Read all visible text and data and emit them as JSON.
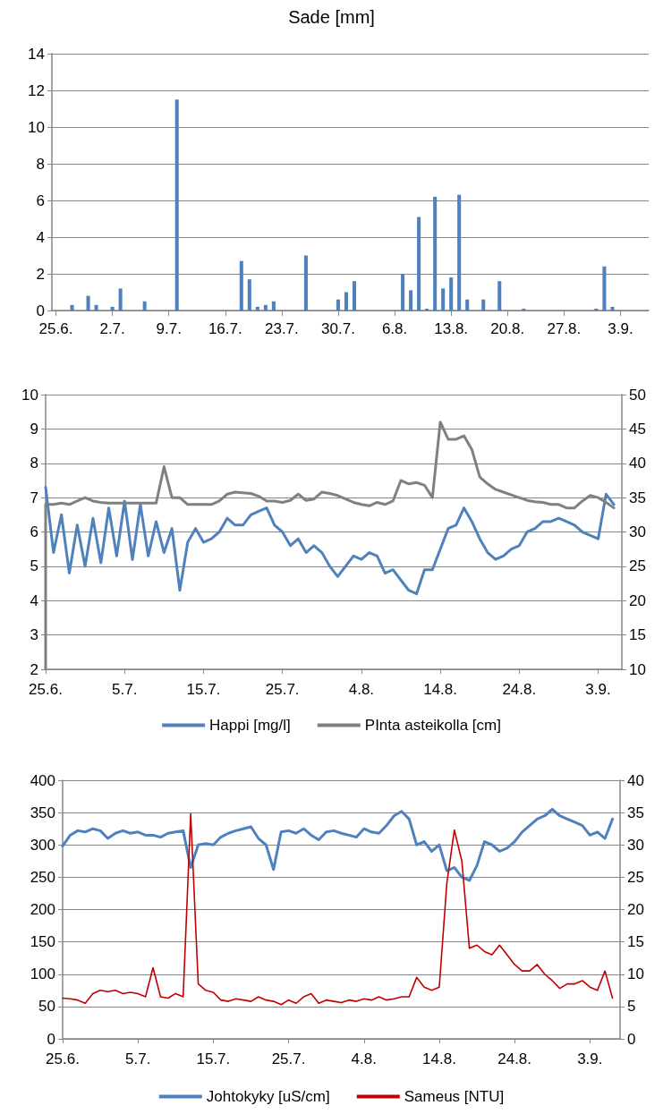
{
  "chart_data": [
    {
      "type": "bar",
      "title": "Sade [mm]",
      "categories": [
        "25.6.",
        null,
        null,
        null,
        null,
        null,
        null,
        "2.7.",
        null,
        null,
        null,
        null,
        null,
        null,
        "9.7.",
        null,
        null,
        null,
        null,
        null,
        null,
        "16.7.",
        null,
        null,
        null,
        null,
        null,
        null,
        "23.7.",
        null,
        null,
        null,
        null,
        null,
        null,
        "30.7.",
        null,
        null,
        null,
        null,
        null,
        null,
        "6.8.",
        null,
        null,
        null,
        null,
        null,
        null,
        "13.8.",
        null,
        null,
        null,
        null,
        null,
        null,
        "20.8.",
        null,
        null,
        null,
        null,
        null,
        null,
        "27.8.",
        null,
        null,
        null,
        null,
        null,
        null,
        "3.9.",
        null,
        null,
        null
      ],
      "values": [
        null,
        null,
        0.3,
        null,
        0.8,
        0.3,
        null,
        0.2,
        1.2,
        null,
        null,
        0.5,
        null,
        null,
        null,
        11.5,
        null,
        null,
        null,
        null,
        null,
        null,
        null,
        2.7,
        1.7,
        0.2,
        0.3,
        0.5,
        null,
        null,
        null,
        3.0,
        null,
        null,
        null,
        0.6,
        1.0,
        1.6,
        null,
        null,
        null,
        null,
        null,
        2.0,
        1.1,
        5.1,
        0.1,
        6.2,
        1.2,
        1.8,
        6.3,
        0.6,
        null,
        0.6,
        null,
        1.6,
        null,
        null,
        0.1,
        null,
        null,
        null,
        null,
        null,
        null,
        null,
        null,
        0.1,
        2.4,
        0.2,
        null,
        null,
        null,
        null
      ],
      "color": "#4f81bd",
      "ylim": [
        0,
        14
      ],
      "yticks": [
        0,
        2,
        4,
        6,
        8,
        10,
        12,
        14
      ],
      "grid": "y"
    },
    {
      "type": "line",
      "x": [
        "--06-25",
        "--06-26",
        "--06-27",
        "--06-28",
        "--06-29",
        "--06-30",
        "--07-01",
        "--07-02",
        "--07-03",
        "--07-04",
        "--07-05",
        "--07-06",
        "--07-07",
        "--07-08",
        "--07-09",
        "--07-10",
        "--07-11",
        "--07-12",
        "--07-13",
        "--07-14",
        "--07-15",
        "--07-16",
        "--07-17",
        "--07-18",
        "--07-19",
        "--07-20",
        "--07-21",
        "--07-22",
        "--07-23",
        "--07-24",
        "--07-25",
        "--07-26",
        "--07-27",
        "--07-28",
        "--07-29",
        "--07-30",
        "--07-31",
        "--08-01",
        "--08-02",
        "--08-03",
        "--08-04",
        "--08-05",
        "--08-06",
        "--08-07",
        "--08-08",
        "--08-09",
        "--08-10",
        "--08-11",
        "--08-12",
        "--08-13",
        "--08-14",
        "--08-15",
        "--08-16",
        "--08-17",
        "--08-18",
        "--08-19",
        "--08-20",
        "--08-21",
        "--08-22",
        "--08-23",
        "--08-24",
        "--08-25",
        "--08-26",
        "--08-27",
        "--08-28",
        "--08-29",
        "--08-30",
        "--08-31",
        "--09-01",
        "--09-02",
        "--09-03",
        "--09-04",
        "--09-05"
      ],
      "series": [
        {
          "name": "Happi [mg/l]",
          "color": "#4f81bd",
          "values": [
            7.3,
            5.4,
            6.5,
            4.8,
            6.2,
            5.0,
            6.4,
            5.1,
            6.7,
            5.3,
            6.9,
            5.2,
            6.8,
            5.3,
            6.3,
            5.4,
            6.1,
            4.3,
            5.7,
            6.1,
            5.7,
            5.8,
            6.0,
            6.4,
            6.2,
            6.2,
            6.5,
            6.6,
            6.7,
            6.2,
            6.0,
            5.6,
            5.8,
            5.4,
            5.6,
            5.4,
            5.0,
            4.7,
            5.0,
            5.3,
            5.2,
            5.4,
            5.3,
            4.8,
            4.9,
            4.6,
            4.3,
            4.2,
            4.9,
            4.9,
            5.5,
            6.1,
            6.2,
            6.7,
            6.3,
            5.8,
            5.4,
            5.2,
            5.3,
            5.5,
            5.6,
            6.0,
            6.1,
            6.3,
            6.3,
            6.4,
            6.3,
            6.2,
            6.0,
            5.9,
            5.8,
            7.1,
            6.8
          ]
        },
        {
          "name": "PInta asteikolla [cm]",
          "color": "#808080",
          "axis": "y2",
          "x": [
            "--06-25",
            "--06-25",
            "--06-26",
            "--06-27",
            "--06-28",
            "--06-29",
            "--06-30",
            "--07-01",
            "--07-02",
            "--07-03",
            "--07-04",
            "--07-05",
            "--07-06",
            "--07-07",
            "--07-08",
            "--07-09",
            "--07-10",
            "--07-11",
            "--07-12",
            "--07-13",
            "--07-14",
            "--07-15",
            "--07-16",
            "--07-17",
            "--07-18",
            "--07-19",
            "--07-20",
            "--07-21",
            "--07-22",
            "--07-23",
            "--07-24",
            "--07-25",
            "--07-26",
            "--07-27",
            "--07-28",
            "--07-29",
            "--07-30",
            "--07-31",
            "--08-01",
            "--08-02",
            "--08-03",
            "--08-04",
            "--08-05",
            "--08-06",
            "--08-07",
            "--08-08",
            "--08-09",
            "--08-10",
            "--08-11",
            "--08-12",
            "--08-13",
            "--08-14",
            "--08-15",
            "--08-16",
            "--08-17",
            "--08-18",
            "--08-19",
            "--08-20",
            "--08-21",
            "--08-22",
            "--08-23",
            "--08-24",
            "--08-25",
            "--08-26",
            "--08-27",
            "--08-28",
            "--08-29",
            "--08-30",
            "--08-31",
            "--09-01",
            "--09-02",
            "--09-03",
            "--09-04",
            "--09-05"
          ],
          "values": [
            10,
            34,
            34,
            34.2,
            34,
            34.5,
            35,
            34.5,
            34.3,
            34.2,
            34.2,
            34.2,
            34.2,
            34.2,
            34.2,
            34.2,
            39.5,
            35,
            35,
            34,
            34,
            34,
            34,
            34.5,
            35.5,
            35.8,
            35.7,
            35.6,
            35.2,
            34.5,
            34.5,
            34.3,
            34.6,
            35.5,
            34.6,
            34.8,
            35.8,
            35.6,
            35.3,
            34.8,
            34.3,
            34,
            33.8,
            34.3,
            34,
            34.5,
            37.5,
            37,
            37.2,
            36.8,
            35,
            46,
            43.5,
            43.5,
            44,
            42,
            38,
            37,
            36.2,
            35.8,
            35.4,
            35,
            34.6,
            34.4,
            34.3,
            34,
            34,
            33.5,
            33.5,
            34.5,
            35.3,
            35,
            34.3,
            33.5
          ]
        }
      ],
      "xlim": [
        "--06-25",
        "--09-06"
      ],
      "xticks": [
        {
          "value": "--06-25",
          "label": "25.6."
        },
        {
          "value": "--07-05",
          "label": "5.7."
        },
        {
          "value": "--07-15",
          "label": "15.7."
        },
        {
          "value": "--07-25",
          "label": "25.7."
        },
        {
          "value": "--08-04",
          "label": "4.8."
        },
        {
          "value": "--08-14",
          "label": "14.8."
        },
        {
          "value": "--08-24",
          "label": "24.8."
        },
        {
          "value": "--09-03",
          "label": "3.9."
        }
      ],
      "ylim": [
        2,
        10
      ],
      "yticks": [
        2,
        3,
        4,
        5,
        6,
        7,
        8,
        9,
        10
      ],
      "y2lim": [
        10,
        50
      ],
      "y2ticks": [
        10,
        15,
        20,
        25,
        30,
        35,
        40,
        45,
        50
      ],
      "grid": "y",
      "legend": "bottom",
      "marker": "none"
    },
    {
      "type": "line",
      "x": [
        "--06-25",
        "--06-26",
        "--06-27",
        "--06-28",
        "--06-29",
        "--06-30",
        "--07-01",
        "--07-02",
        "--07-03",
        "--07-04",
        "--07-05",
        "--07-06",
        "--07-07",
        "--07-08",
        "--07-09",
        "--07-10",
        "--07-11",
        "--07-12",
        "--07-13",
        "--07-14",
        "--07-15",
        "--07-16",
        "--07-17",
        "--07-18",
        "--07-19",
        "--07-20",
        "--07-21",
        "--07-22",
        "--07-23",
        "--07-24",
        "--07-25",
        "--07-26",
        "--07-27",
        "--07-28",
        "--07-29",
        "--07-30",
        "--07-31",
        "--08-01",
        "--08-02",
        "--08-03",
        "--08-04",
        "--08-05",
        "--08-06",
        "--08-07",
        "--08-08",
        "--08-09",
        "--08-10",
        "--08-11",
        "--08-12",
        "--08-13",
        "--08-14",
        "--08-15",
        "--08-16",
        "--08-17",
        "--08-18",
        "--08-19",
        "--08-20",
        "--08-21",
        "--08-22",
        "--08-23",
        "--08-24",
        "--08-25",
        "--08-26",
        "--08-27",
        "--08-28",
        "--08-29",
        "--08-30",
        "--08-31",
        "--09-01",
        "--09-02",
        "--09-03",
        "--09-04",
        "--09-05",
        "--09-06"
      ],
      "series": [
        {
          "name": "Johtokyky [uS/cm]",
          "color": "#4f81bd",
          "values": [
            298,
            315,
            322,
            320,
            325,
            322,
            310,
            318,
            322,
            318,
            320,
            315,
            315,
            312,
            318,
            320,
            322,
            265,
            300,
            302,
            300,
            312,
            318,
            322,
            325,
            328,
            310,
            300,
            262,
            320,
            322,
            318,
            325,
            315,
            308,
            320,
            322,
            318,
            315,
            312,
            325,
            320,
            318,
            330,
            345,
            352,
            340,
            300,
            305,
            290,
            300,
            260,
            265,
            250,
            245,
            268,
            305,
            300,
            290,
            295,
            305,
            320,
            330,
            340,
            345,
            355,
            345,
            340,
            335,
            330,
            315,
            320,
            310,
            340
          ]
        },
        {
          "name": "Sameus [NTU]",
          "color": "#c00000",
          "axis": "y2",
          "values": [
            6.3,
            6.2,
            6.0,
            5.5,
            7.0,
            7.5,
            7.3,
            7.5,
            7.0,
            7.2,
            7.0,
            6.5,
            11.0,
            6.5,
            6.3,
            7.0,
            6.5,
            34.8,
            8.5,
            7.5,
            7.2,
            6.0,
            5.8,
            6.2,
            6.0,
            5.8,
            6.5,
            6.0,
            5.8,
            5.3,
            6.0,
            5.5,
            6.5,
            7.0,
            5.5,
            6.0,
            5.8,
            5.6,
            6.0,
            5.8,
            6.2,
            6.0,
            6.5,
            6.0,
            6.2,
            6.5,
            6.5,
            9.5,
            8.0,
            7.5,
            8.0,
            24,
            32.3,
            27.5,
            14,
            14.5,
            13.5,
            13,
            14.5,
            13,
            11.5,
            10.5,
            10.5,
            11.5,
            10,
            9,
            7.8,
            8.5,
            8.5,
            9,
            8,
            7.5,
            10.5,
            6.3
          ]
        }
      ],
      "xlim": [
        "--06-25",
        "--09-07"
      ],
      "xticks": [
        {
          "value": "--06-25",
          "label": "25.6."
        },
        {
          "value": "--07-05",
          "label": "5.7."
        },
        {
          "value": "--07-15",
          "label": "15.7."
        },
        {
          "value": "--07-25",
          "label": "25.7."
        },
        {
          "value": "--08-04",
          "label": "4.8."
        },
        {
          "value": "--08-14",
          "label": "14.8."
        },
        {
          "value": "--08-24",
          "label": "24.8."
        },
        {
          "value": "--09-03",
          "label": "3.9."
        }
      ],
      "ylim": [
        0,
        400
      ],
      "yticks": [
        0,
        50,
        100,
        150,
        200,
        250,
        300,
        350,
        400
      ],
      "y2lim": [
        0,
        40
      ],
      "y2ticks": [
        0,
        5,
        10,
        15,
        20,
        25,
        30,
        35,
        40
      ],
      "grid": "y",
      "legend": "bottom",
      "marker": "none"
    }
  ]
}
